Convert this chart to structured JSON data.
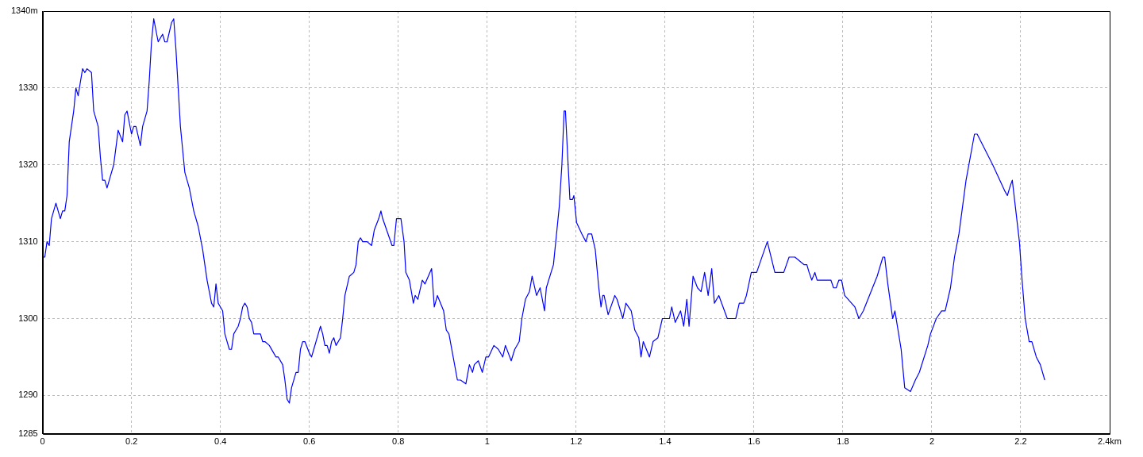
{
  "chart_data": {
    "type": "line",
    "color": "#0000ff",
    "marker": "none",
    "line_style": "solid",
    "grid": true,
    "legend": false,
    "xlim": [
      0,
      2.4
    ],
    "xticks": [
      0,
      0.2,
      0.4,
      0.6,
      0.8,
      1,
      1.2,
      1.4,
      1.6,
      1.8,
      2,
      2.2,
      {
        "value": 2.4,
        "label": "2.4km"
      }
    ],
    "ylim": [
      1285,
      1340
    ],
    "yticks": [
      1285,
      1290,
      1300,
      1310,
      1320,
      1330,
      {
        "value": 1340,
        "label": "1340m"
      }
    ],
    "x": [
      0,
      0.005,
      0.01,
      0.015,
      0.02,
      0.03,
      0.04,
      0.045,
      0.05,
      0.055,
      0.06,
      0.07,
      0.075,
      0.08,
      0.09,
      0.095,
      0.1,
      0.11,
      0.115,
      0.125,
      0.13,
      0.135,
      0.14,
      0.145,
      0.15,
      0.16,
      0.17,
      0.18,
      0.185,
      0.19,
      0.2,
      0.205,
      0.21,
      0.22,
      0.225,
      0.235,
      0.24,
      0.245,
      0.25,
      0.26,
      0.27,
      0.275,
      0.28,
      0.29,
      0.295,
      0.3,
      0.305,
      0.31,
      0.32,
      0.33,
      0.34,
      0.35,
      0.36,
      0.37,
      0.38,
      0.385,
      0.39,
      0.395,
      0.4,
      0.405,
      0.41,
      0.42,
      0.425,
      0.43,
      0.435,
      0.44,
      0.445,
      0.45,
      0.455,
      0.46,
      0.465,
      0.47,
      0.475,
      0.48,
      0.49,
      0.495,
      0.5,
      0.51,
      0.52,
      0.525,
      0.53,
      0.54,
      0.545,
      0.55,
      0.555,
      0.56,
      0.57,
      0.575,
      0.58,
      0.585,
      0.59,
      0.6,
      0.605,
      0.61,
      0.62,
      0.625,
      0.63,
      0.635,
      0.64,
      0.645,
      0.65,
      0.655,
      0.66,
      0.67,
      0.675,
      0.68,
      0.69,
      0.7,
      0.705,
      0.71,
      0.715,
      0.72,
      0.73,
      0.74,
      0.746,
      0.756,
      0.761,
      0.765,
      0.771,
      0.786,
      0.79,
      0.796,
      0.8,
      0.806,
      0.813,
      0.817,
      0.825,
      0.834,
      0.838,
      0.844,
      0.854,
      0.86,
      0.875,
      0.881,
      0.888,
      0.902,
      0.908,
      0.914,
      0.933,
      0.94,
      0.952,
      0.96,
      0.967,
      0.971,
      0.98,
      0.989,
      0.997,
      1.003,
      1.015,
      1.025,
      1.035,
      1.041,
      1.054,
      1.062,
      1.072,
      1.078,
      1.086,
      1.095,
      1.101,
      1.111,
      1.119,
      1.129,
      1.133,
      1.149,
      1.162,
      1.168,
      1.173,
      1.176,
      1.182,
      1.186,
      1.192,
      1.195,
      1.201,
      1.213,
      1.222,
      1.227,
      1.235,
      1.243,
      1.251,
      1.256,
      1.26,
      1.263,
      1.272,
      1.287,
      1.292,
      1.305,
      1.312,
      1.324,
      1.332,
      1.341,
      1.346,
      1.351,
      1.365,
      1.373,
      1.384,
      1.394,
      1.41,
      1.415,
      1.423,
      1.435,
      1.442,
      1.449,
      1.454,
      1.463,
      1.473,
      1.481,
      1.489,
      1.497,
      1.505,
      1.511,
      1.521,
      1.54,
      1.559,
      1.567,
      1.577,
      1.583,
      1.594,
      1.606,
      1.621,
      1.63,
      1.647,
      1.667,
      1.679,
      1.692,
      1.713,
      1.719,
      1.724,
      1.73,
      1.737,
      1.742,
      1.773,
      1.779,
      1.785,
      1.791,
      1.797,
      1.804,
      1.827,
      1.836,
      1.846,
      1.877,
      1.89,
      1.894,
      1.901,
      1.912,
      1.917,
      1.931,
      1.939,
      1.952,
      1.963,
      1.972,
      1.991,
      1.997,
      2.01,
      2.022,
      2.03,
      2.042,
      2.051,
      2.061,
      2.077,
      2.096,
      2.102,
      2.137,
      2.165,
      2.17,
      2.175,
      2.181,
      2.187,
      2.197,
      2.203,
      2.21,
      2.219,
      2.225,
      2.235,
      2.244,
      2.254
    ],
    "values": [
      1308,
      1308,
      1310,
      1309.5,
      1313,
      1315,
      1313,
      1314,
      1314,
      1316,
      1323,
      1327,
      1330,
      1329,
      1332.5,
      1332,
      1332.5,
      1332,
      1327,
      1325,
      1321,
      1318,
      1318,
      1317,
      1318,
      1320,
      1324.5,
      1323,
      1326.5,
      1327,
      1324,
      1325,
      1325,
      1322.5,
      1325,
      1327,
      1331,
      1336,
      1339,
      1336,
      1337,
      1336,
      1336,
      1338.5,
      1339,
      1335,
      1330,
      1325,
      1319,
      1317,
      1314,
      1312,
      1309,
      1305,
      1302,
      1301.5,
      1304.5,
      1302,
      1301.5,
      1301,
      1298,
      1296,
      1296,
      1298,
      1298.5,
      1299,
      1300,
      1301.5,
      1302,
      1301.5,
      1300,
      1299.5,
      1298,
      1298,
      1298,
      1297,
      1297,
      1296.5,
      1295.5,
      1295,
      1295,
      1294,
      1292,
      1289.5,
      1289,
      1291,
      1293,
      1293,
      1296,
      1297,
      1297,
      1295.5,
      1295,
      1296,
      1298,
      1299,
      1298,
      1296.5,
      1296.5,
      1295.5,
      1297,
      1297.5,
      1296.5,
      1297.5,
      1300,
      1303,
      1305.5,
      1306,
      1307,
      1310,
      1310.5,
      1310,
      1310,
      1309.5,
      1311.5,
      1313,
      1314,
      1313,
      1312,
      1309.5,
      1309.5,
      1313,
      1313,
      1313,
      1310,
      1306,
      1305,
      1302,
      1303,
      1302.5,
      1305,
      1304.5,
      1306.5,
      1301.5,
      1303,
      1301,
      1298.5,
      1298,
      1292,
      1292,
      1291.5,
      1294,
      1293,
      1294,
      1294.5,
      1293,
      1295,
      1295,
      1296.5,
      1296,
      1295,
      1296.5,
      1294.5,
      1296,
      1297,
      1300,
      1302.5,
      1303.5,
      1305.5,
      1303,
      1304,
      1301,
      1304,
      1307,
      1314.5,
      1320,
      1327,
      1327,
      1320,
      1315.5,
      1315.5,
      1316,
      1312.5,
      1311,
      1310,
      1311,
      1311,
      1309,
      1304,
      1301.5,
      1303,
      1303,
      1300.5,
      1303,
      1302.5,
      1300,
      1302,
      1301,
      1298.5,
      1297.5,
      1295,
      1297,
      1295,
      1297,
      1297.5,
      1300,
      1300,
      1301.5,
      1299.5,
      1301,
      1299,
      1302.5,
      1299,
      1305.5,
      1304,
      1303.5,
      1306,
      1303,
      1306.5,
      1302,
      1303,
      1300,
      1300,
      1302,
      1302,
      1303,
      1306,
      1306,
      1308.5,
      1310,
      1306,
      1306,
      1308,
      1308,
      1307,
      1307,
      1306,
      1305,
      1306,
      1305,
      1305,
      1304,
      1304,
      1305,
      1305,
      1303,
      1301.5,
      1300,
      1301,
      1305.5,
      1308,
      1308,
      1304.5,
      1300,
      1301,
      1296,
      1291,
      1290.5,
      1292,
      1293,
      1296.5,
      1298,
      1300,
      1301,
      1301,
      1304,
      1308,
      1311,
      1318,
      1324,
      1324,
      1320,
      1316.5,
      1316,
      1317,
      1318,
      1315,
      1310,
      1305,
      1300,
      1297,
      1297,
      1295,
      1294,
      1292
    ]
  }
}
